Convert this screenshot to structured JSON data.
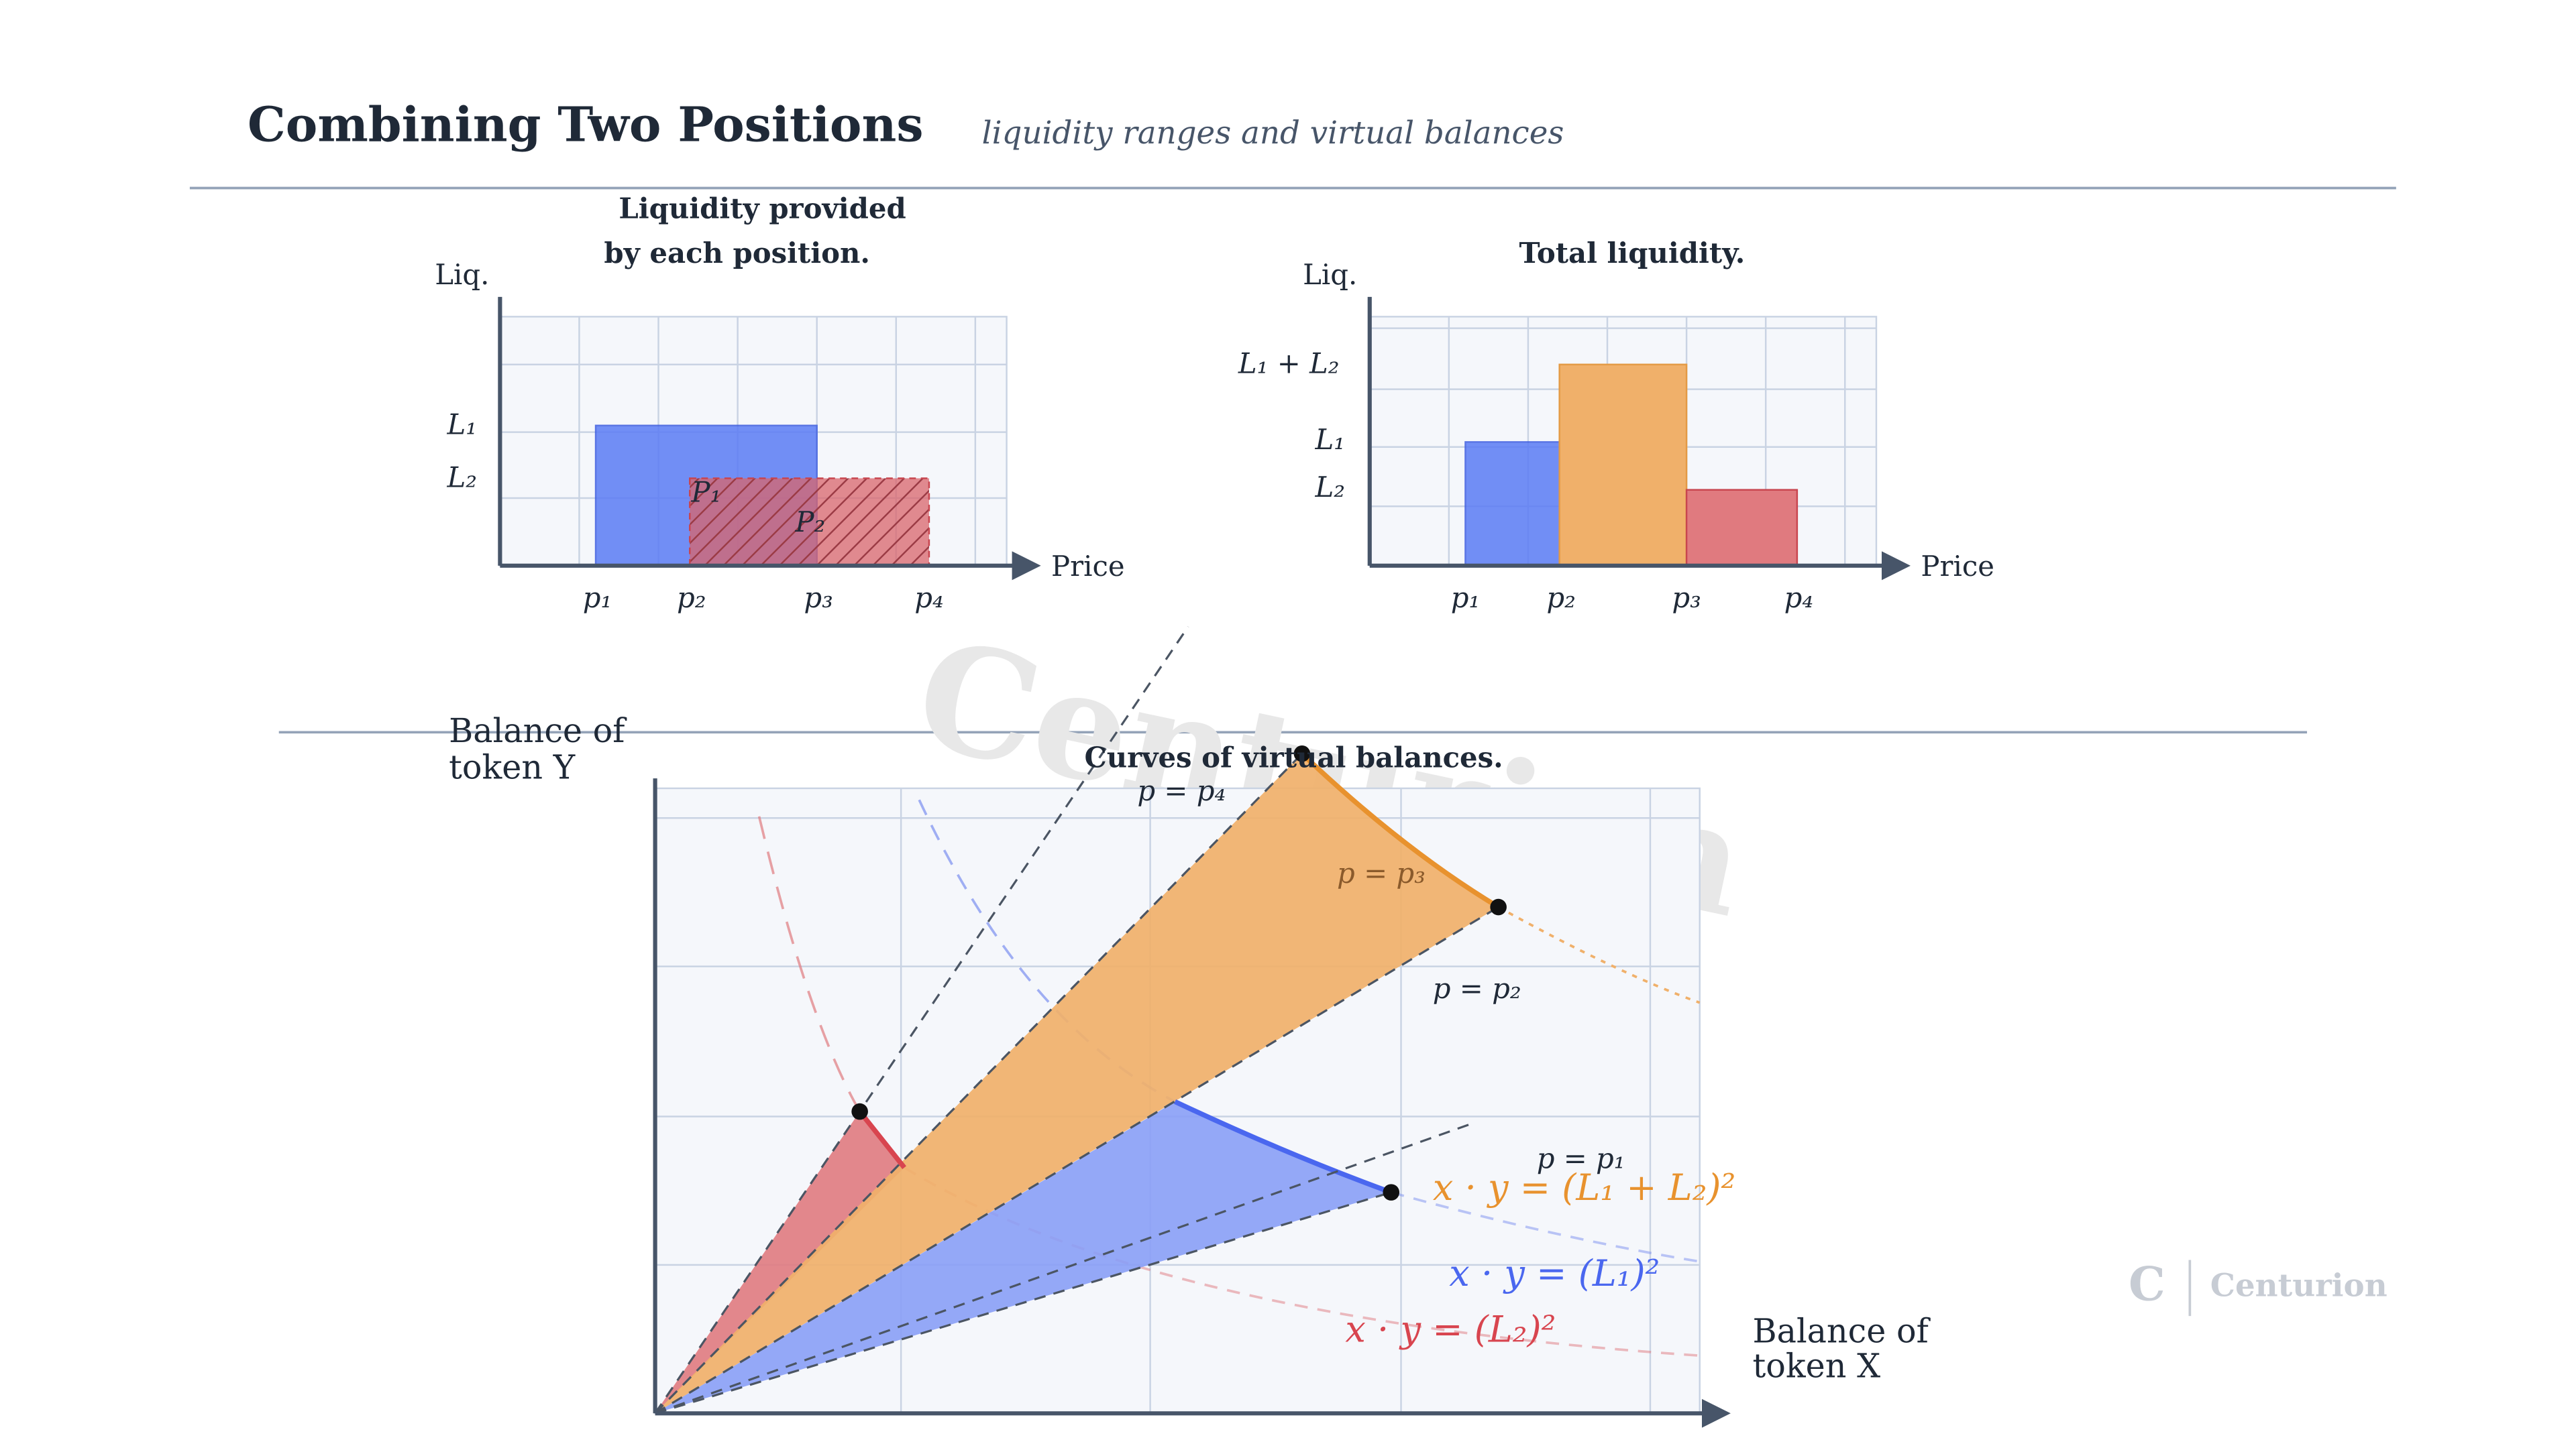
{
  "header": {
    "title": "Combining Two Positions",
    "subtitle": "liquidity ranges and virtual balances"
  },
  "left_panel": {
    "title_lines": [
      "Liquidity provided",
      "by each position."
    ],
    "y_label": "Liq.",
    "x_label": "Price",
    "levels": [
      "L₁",
      "L₂"
    ],
    "prices": [
      "p₁",
      "p₂",
      "p₃",
      "p₄"
    ],
    "positions": [
      "P₁",
      "P₂"
    ]
  },
  "right_panel": {
    "title": "Total liquidity.",
    "y_label": "Liq.",
    "x_label": "Price",
    "levels": [
      "L₁ + L₂",
      "L₁",
      "L₂"
    ],
    "prices": [
      "p₁",
      "p₂",
      "p₃",
      "p₄"
    ]
  },
  "bottom_panel": {
    "title": "Curves of virtual balances.",
    "y_label": [
      "Balance of",
      "token Y"
    ],
    "x_label": [
      "Balance of",
      "token X"
    ],
    "price_lines": [
      "p = p₄",
      "p = p₃",
      "p = p₂",
      "p = p₁"
    ],
    "curves": [
      "x · y = (L₁ + L₂)²",
      "x · y = (L₁)²",
      "x · y = (L₂)²"
    ]
  },
  "watermark": "Centurion",
  "logo": {
    "mark": "C",
    "name": "Centurion"
  }
}
